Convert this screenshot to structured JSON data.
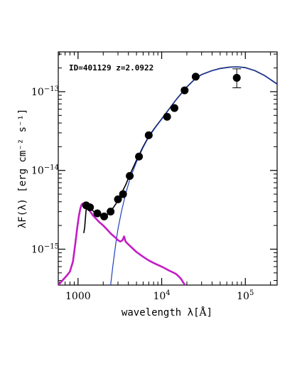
{
  "chart_data": {
    "type": "scatter",
    "annotation": "ID=401129 z=2.0922",
    "xlabel_main": "wavelength λ[",
    "xlabel_unit": "Å",
    "xlabel_close": "]",
    "ylabel": "λF(λ) [erg cm⁻² s⁻¹]",
    "x_scale": "log",
    "y_scale": "log",
    "xlim": [
      580,
      240000
    ],
    "ylim": [
      3.5e-16,
      3.2e-13
    ],
    "x_ticks": [
      {
        "value": 1000,
        "base": "1000",
        "exp": ""
      },
      {
        "value": 10000,
        "base": "10",
        "exp": "4"
      },
      {
        "value": 100000,
        "base": "10",
        "exp": "5"
      }
    ],
    "y_ticks": [
      {
        "value": 1e-15,
        "base": "10",
        "exp": "−15"
      },
      {
        "value": 1e-14,
        "base": "10",
        "exp": "−14"
      },
      {
        "value": 1e-13,
        "base": "10",
        "exp": "−13"
      }
    ],
    "grid": false,
    "colors": {
      "points": "#000000",
      "total_model": "#000000",
      "stellar_model": "#1f3fbf",
      "agn_model": "#c41cc4"
    },
    "points": [
      {
        "x": 1250,
        "y": 3.6e-15
      },
      {
        "x": 1390,
        "y": 3.4e-15
      },
      {
        "x": 1700,
        "y": 2.85e-15
      },
      {
        "x": 2050,
        "y": 2.6e-15
      },
      {
        "x": 2450,
        "y": 3e-15
      },
      {
        "x": 3000,
        "y": 4.3e-15
      },
      {
        "x": 3450,
        "y": 5e-15
      },
      {
        "x": 4150,
        "y": 8.5e-15
      },
      {
        "x": 5350,
        "y": 1.5e-14
      },
      {
        "x": 7000,
        "y": 2.8e-14
      },
      {
        "x": 11600,
        "y": 4.8e-14
      },
      {
        "x": 14200,
        "y": 6.2e-14
      },
      {
        "x": 18800,
        "y": 1.04e-13
      },
      {
        "x": 25500,
        "y": 1.55e-13
      },
      {
        "x": 79000,
        "y": 1.5e-13,
        "yerr_low": 1.12e-13,
        "yerr_high": 1.95e-13
      }
    ],
    "series": [
      {
        "x": [
          1170,
          1200,
          1230,
          1260,
          1300,
          1400,
          1600,
          1800,
          2000,
          2200,
          2500,
          2800,
          3000,
          3300,
          3700,
          4200,
          5000,
          6000,
          7000,
          8500,
          10000,
          12500,
          15000,
          20000,
          25000,
          30000,
          40000,
          50000,
          65000,
          80000,
          100000,
          130000,
          170000,
          240000
        ],
        "y": [
          1.6e-15,
          1.9e-15,
          2.6e-15,
          3.5e-15,
          3.55e-15,
          3.3e-15,
          2.9e-15,
          2.65e-15,
          2.6e-15,
          2.7e-15,
          3.1e-15,
          3.7e-15,
          4.2e-15,
          5.1e-15,
          6.5e-15,
          9e-15,
          1.35e-14,
          2e-14,
          2.7e-14,
          3.6e-14,
          4.5e-14,
          6.2e-14,
          8e-14,
          1.15e-13,
          1.45e-13,
          1.65e-13,
          1.85e-13,
          1.97e-13,
          2.05e-13,
          2.07e-13,
          2.02e-13,
          1.85e-13,
          1.6e-13,
          1.25e-13
        ]
      },
      {
        "x": [
          2450,
          2600,
          2800,
          3000,
          3300,
          3700,
          4200,
          5000,
          6000,
          7000,
          8500,
          10000,
          12500,
          15000,
          20000,
          25000,
          30000,
          40000,
          50000,
          65000,
          80000,
          100000,
          130000,
          170000,
          240000
        ],
        "y": [
          3.5e-16,
          6e-16,
          1.1e-15,
          1.8e-15,
          3e-15,
          5e-15,
          8e-15,
          1.28e-14,
          1.95e-14,
          2.65e-14,
          3.55e-14,
          4.45e-14,
          6.15e-14,
          7.95e-14,
          1.14e-13,
          1.44e-13,
          1.64e-13,
          1.84e-13,
          1.96e-13,
          2.04e-13,
          2.06e-13,
          2.01e-13,
          1.84e-13,
          1.59e-13,
          1.24e-13
        ]
      },
      {
        "x": [
          580,
          650,
          730,
          800,
          870,
          930,
          980,
          1020,
          1060,
          1100,
          1140,
          1180,
          1215,
          1240,
          1300,
          1400,
          1500,
          1600,
          1800,
          2000,
          2200,
          2500,
          2800,
          3000,
          3200,
          3400,
          3550,
          3700,
          4000,
          4500,
          5000,
          6000,
          7000,
          8000,
          9000,
          10000,
          11000,
          12000,
          13000,
          14000,
          15000,
          16000,
          17000,
          18000,
          19000
        ],
        "y": [
          3.5e-16,
          4e-16,
          4.6e-16,
          5.2e-16,
          7e-16,
          1.2e-15,
          1.9e-15,
          2.6e-15,
          3.2e-15,
          3.65e-15,
          3.8e-15,
          3.7e-15,
          3.8e-15,
          3.5e-15,
          3.3e-15,
          3e-15,
          2.7e-15,
          2.5e-15,
          2.2e-15,
          2e-15,
          1.8e-15,
          1.55e-15,
          1.4e-15,
          1.3e-15,
          1.25e-15,
          1.3e-15,
          1.45e-15,
          1.25e-15,
          1.15e-15,
          1.02e-15,
          9.2e-16,
          8e-16,
          7.2e-16,
          6.7e-16,
          6.3e-16,
          6e-16,
          5.7e-16,
          5.4e-16,
          5.2e-16,
          5e-16,
          4.8e-16,
          4.5e-16,
          4.2e-16,
          3.8e-16,
          3.5e-16
        ]
      }
    ]
  }
}
